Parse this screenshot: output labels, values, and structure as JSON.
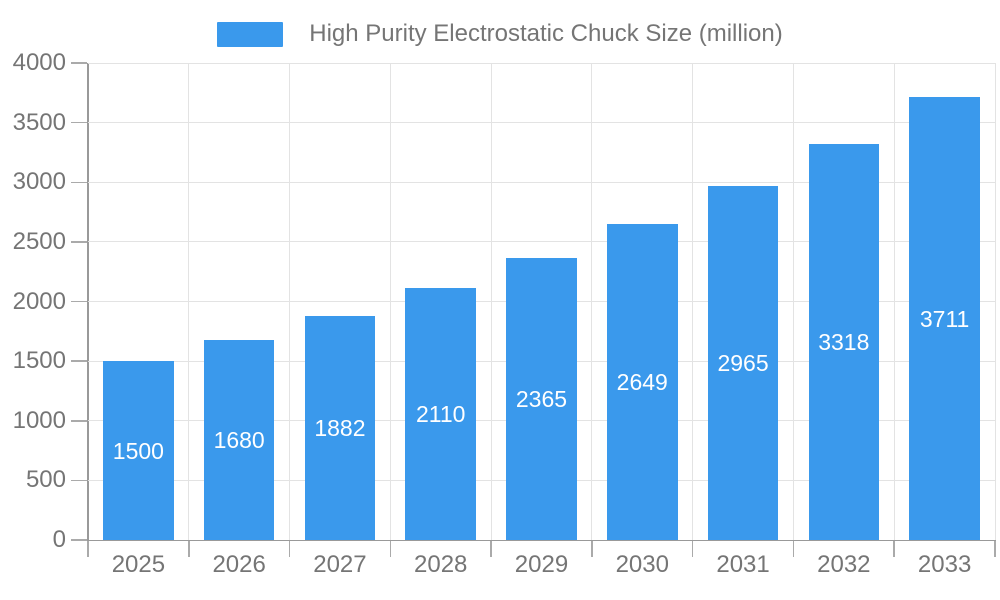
{
  "legend": {
    "label": "High Purity Electrostatic Chuck Size (million)"
  },
  "colors": {
    "bar": "#3a99ec",
    "grid": "#e3e3e3",
    "axis": "#999999",
    "tick": "#aaaaaa",
    "text": "#757575",
    "value_label": "#ffffff",
    "background": "#ffffff"
  },
  "chart_data": {
    "type": "bar",
    "title": "High Purity Electrostatic Chuck Size (million)",
    "categories": [
      "2025",
      "2026",
      "2027",
      "2028",
      "2029",
      "2030",
      "2031",
      "2032",
      "2033"
    ],
    "values": [
      1500,
      1680,
      1882,
      2110,
      2365,
      2649,
      2965,
      3318,
      3711
    ],
    "series": [
      {
        "name": "High Purity Electrostatic Chuck Size (million)",
        "values": [
          1500,
          1680,
          1882,
          2110,
          2365,
          2649,
          2965,
          3318,
          3711
        ]
      }
    ],
    "bar_labels": [
      "1500",
      "1680",
      "1882",
      "2110",
      "2365",
      "2649",
      "2965",
      "3318",
      "3711"
    ],
    "xlabel": "",
    "ylabel": "",
    "ylim": [
      0,
      4000
    ],
    "yticks": [
      0,
      500,
      1000,
      1500,
      2000,
      2500,
      3000,
      3500,
      4000
    ],
    "grid": true,
    "legend_position": "top-center",
    "bar_label_position": "inside-middle"
  }
}
